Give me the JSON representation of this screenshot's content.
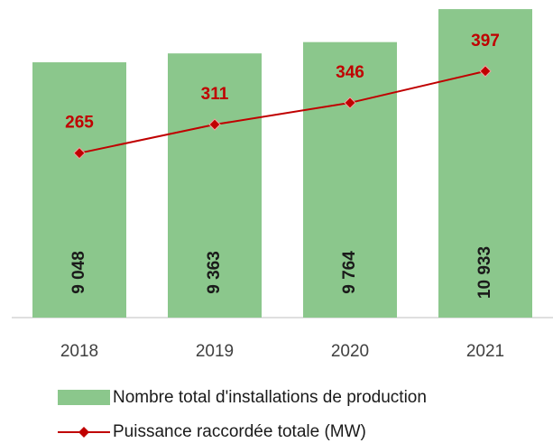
{
  "chart_data": {
    "type": "bar",
    "categories": [
      "2018",
      "2019",
      "2020",
      "2021"
    ],
    "series": [
      {
        "name": "Nombre total d'installations de production",
        "type": "bar",
        "color": "#8bc78c",
        "values": [
          9048,
          9363,
          9764,
          10933
        ],
        "value_labels": [
          "9 048",
          "9 363",
          "9 764",
          "10 933"
        ]
      },
      {
        "name": "Puissance raccordée totale (MW)",
        "type": "line",
        "axis": "y2",
        "color": "#c00000",
        "values": [
          265,
          311,
          346,
          397
        ]
      }
    ],
    "ylim": [
      0,
      11000
    ],
    "y2lim": [
      0,
      500
    ],
    "legend": "bottom"
  }
}
